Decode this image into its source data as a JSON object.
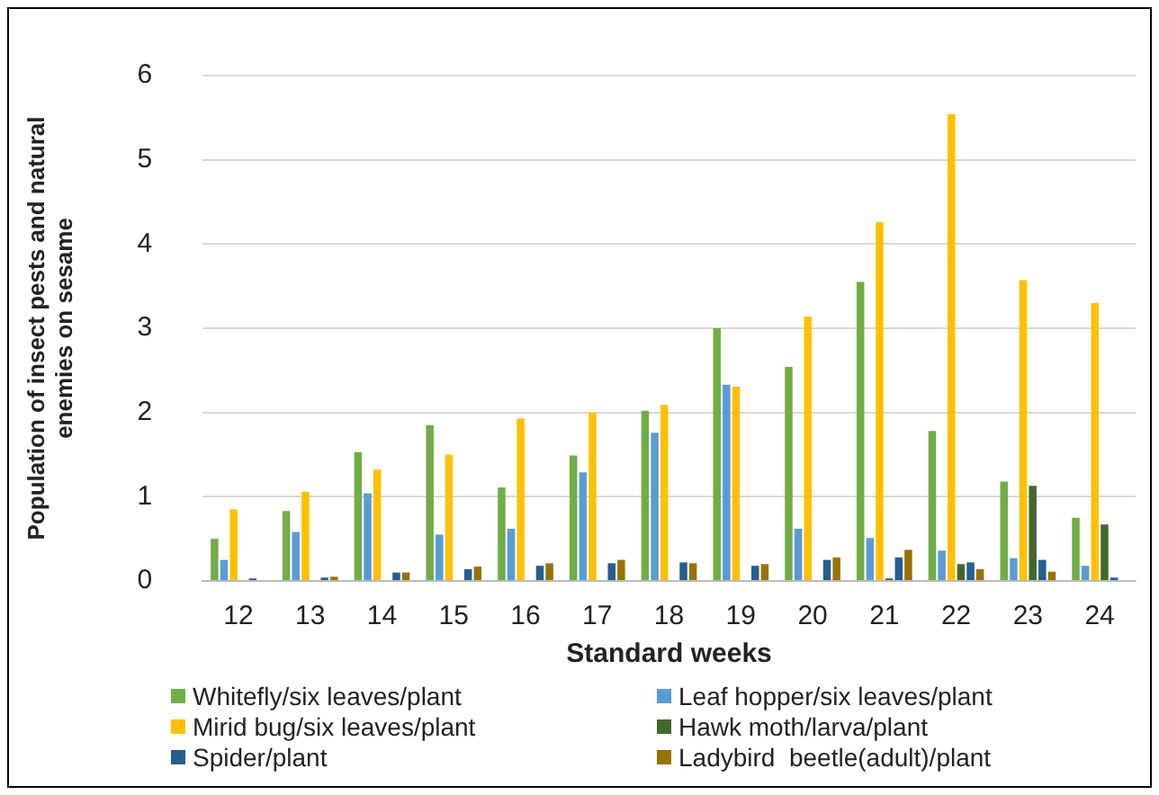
{
  "chart_data": {
    "type": "bar",
    "xlabel": "Standard weeks",
    "ylabel": "Population of insect pests and natural enemies on sesame",
    "categories": [
      "12",
      "13",
      "14",
      "15",
      "16",
      "17",
      "18",
      "19",
      "20",
      "21",
      "22",
      "23",
      "24"
    ],
    "ylim": [
      0,
      6
    ],
    "yticks": [
      0,
      1,
      2,
      3,
      4,
      5,
      6
    ],
    "grid": "y",
    "legend": "bottom",
    "series": [
      {
        "name": "Whitefly/six leaves/plant",
        "color": "#70ad47",
        "values": [
          0.5,
          0.83,
          1.53,
          1.85,
          1.11,
          1.49,
          2.02,
          3.0,
          2.54,
          3.55,
          1.78,
          1.18,
          0.75
        ]
      },
      {
        "name": "Leaf hopper/six leaves/plant",
        "color": "#5b9bd5",
        "values": [
          0.25,
          0.58,
          1.04,
          0.55,
          0.62,
          1.29,
          1.76,
          2.33,
          0.62,
          0.51,
          0.36,
          0.27,
          0.18
        ]
      },
      {
        "name": "Mirid bug/six leaves/plant",
        "color": "#ffc000",
        "values": [
          0.85,
          1.06,
          1.32,
          1.5,
          1.93,
          2.0,
          2.09,
          2.31,
          3.14,
          4.26,
          5.54,
          3.57,
          3.3
        ]
      },
      {
        "name": "Hawk moth/larva/plant",
        "color": "#43682b",
        "values": [
          0,
          0,
          0,
          0,
          0,
          0,
          0,
          0,
          0,
          0.03,
          0.2,
          1.13,
          0.67
        ]
      },
      {
        "name": "Spider/plant",
        "color": "#255e91",
        "values": [
          0.03,
          0.04,
          0.1,
          0.14,
          0.18,
          0.21,
          0.22,
          0.18,
          0.25,
          0.28,
          0.22,
          0.25,
          0.04
        ]
      },
      {
        "name": "Ladybird  beetle(adult)/plant",
        "color": "#997300",
        "values": [
          0,
          0.05,
          0.1,
          0.17,
          0.21,
          0.25,
          0.21,
          0.2,
          0.28,
          0.37,
          0.14,
          0.11,
          0
        ]
      }
    ]
  }
}
